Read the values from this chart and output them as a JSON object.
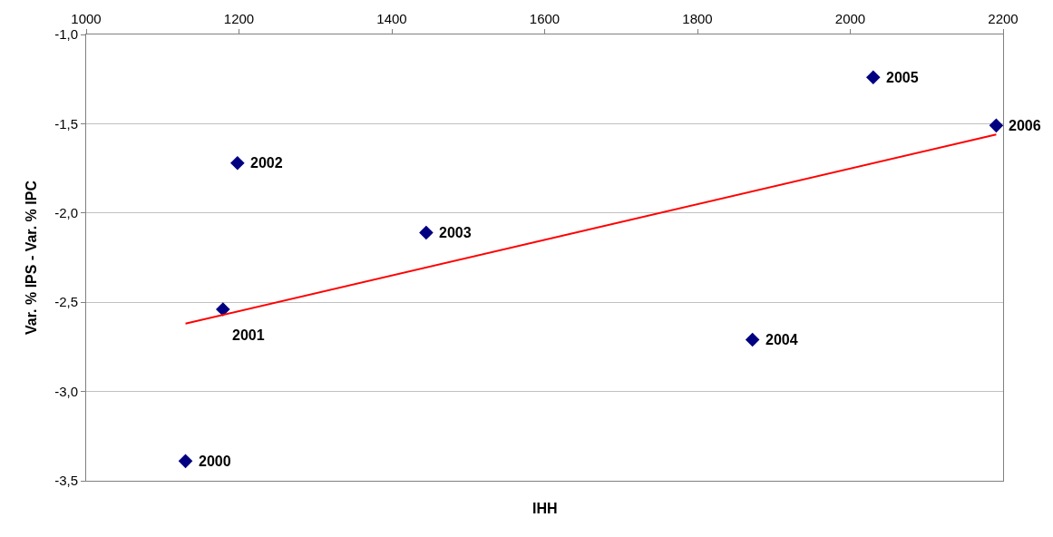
{
  "chart_data": {
    "type": "scatter",
    "xlabel": "IHH",
    "ylabel": "Var. % IPS - Var. % IPC",
    "xlim": [
      1000,
      2200
    ],
    "xticks": [
      1000,
      1200,
      1400,
      1600,
      1800,
      2000,
      2200
    ],
    "ylim": [
      -3.5,
      -1.0
    ],
    "yticks": [
      {
        "value": -3.5,
        "label": "-3,5"
      },
      {
        "value": -3.0,
        "label": "-3,0"
      },
      {
        "value": -2.5,
        "label": "-2,5"
      },
      {
        "value": -2.0,
        "label": "-2,0"
      },
      {
        "value": -1.5,
        "label": "-1,5"
      },
      {
        "value": -1.0,
        "label": "-1,0"
      }
    ],
    "grid": "y",
    "marker": "diamond",
    "series": [
      {
        "color": "#000080",
        "x": [
          1130,
          1179,
          1198,
          1445,
          1872,
          2030,
          2191
        ],
        "values": [
          -3.39,
          -2.54,
          -1.72,
          -2.11,
          -2.71,
          -1.24,
          -1.51
        ]
      },
      {
        "type": "line",
        "marker": "none",
        "color": "#ff0000",
        "x": [
          1130,
          2191
        ],
        "values": [
          -2.62,
          -1.56
        ]
      }
    ],
    "annotations": [
      {
        "text": "2000",
        "x": 1130,
        "y": -3.39
      },
      {
        "text": "2001",
        "x": 1179,
        "y": -2.54
      },
      {
        "text": "2002",
        "x": 1198,
        "y": -1.72
      },
      {
        "text": "2003",
        "x": 1445,
        "y": -2.11
      },
      {
        "text": "2004",
        "x": 1872,
        "y": -2.71
      },
      {
        "text": "2005",
        "x": 2030,
        "y": -1.24
      },
      {
        "text": "2006",
        "x": 2191,
        "y": -1.51
      }
    ]
  }
}
